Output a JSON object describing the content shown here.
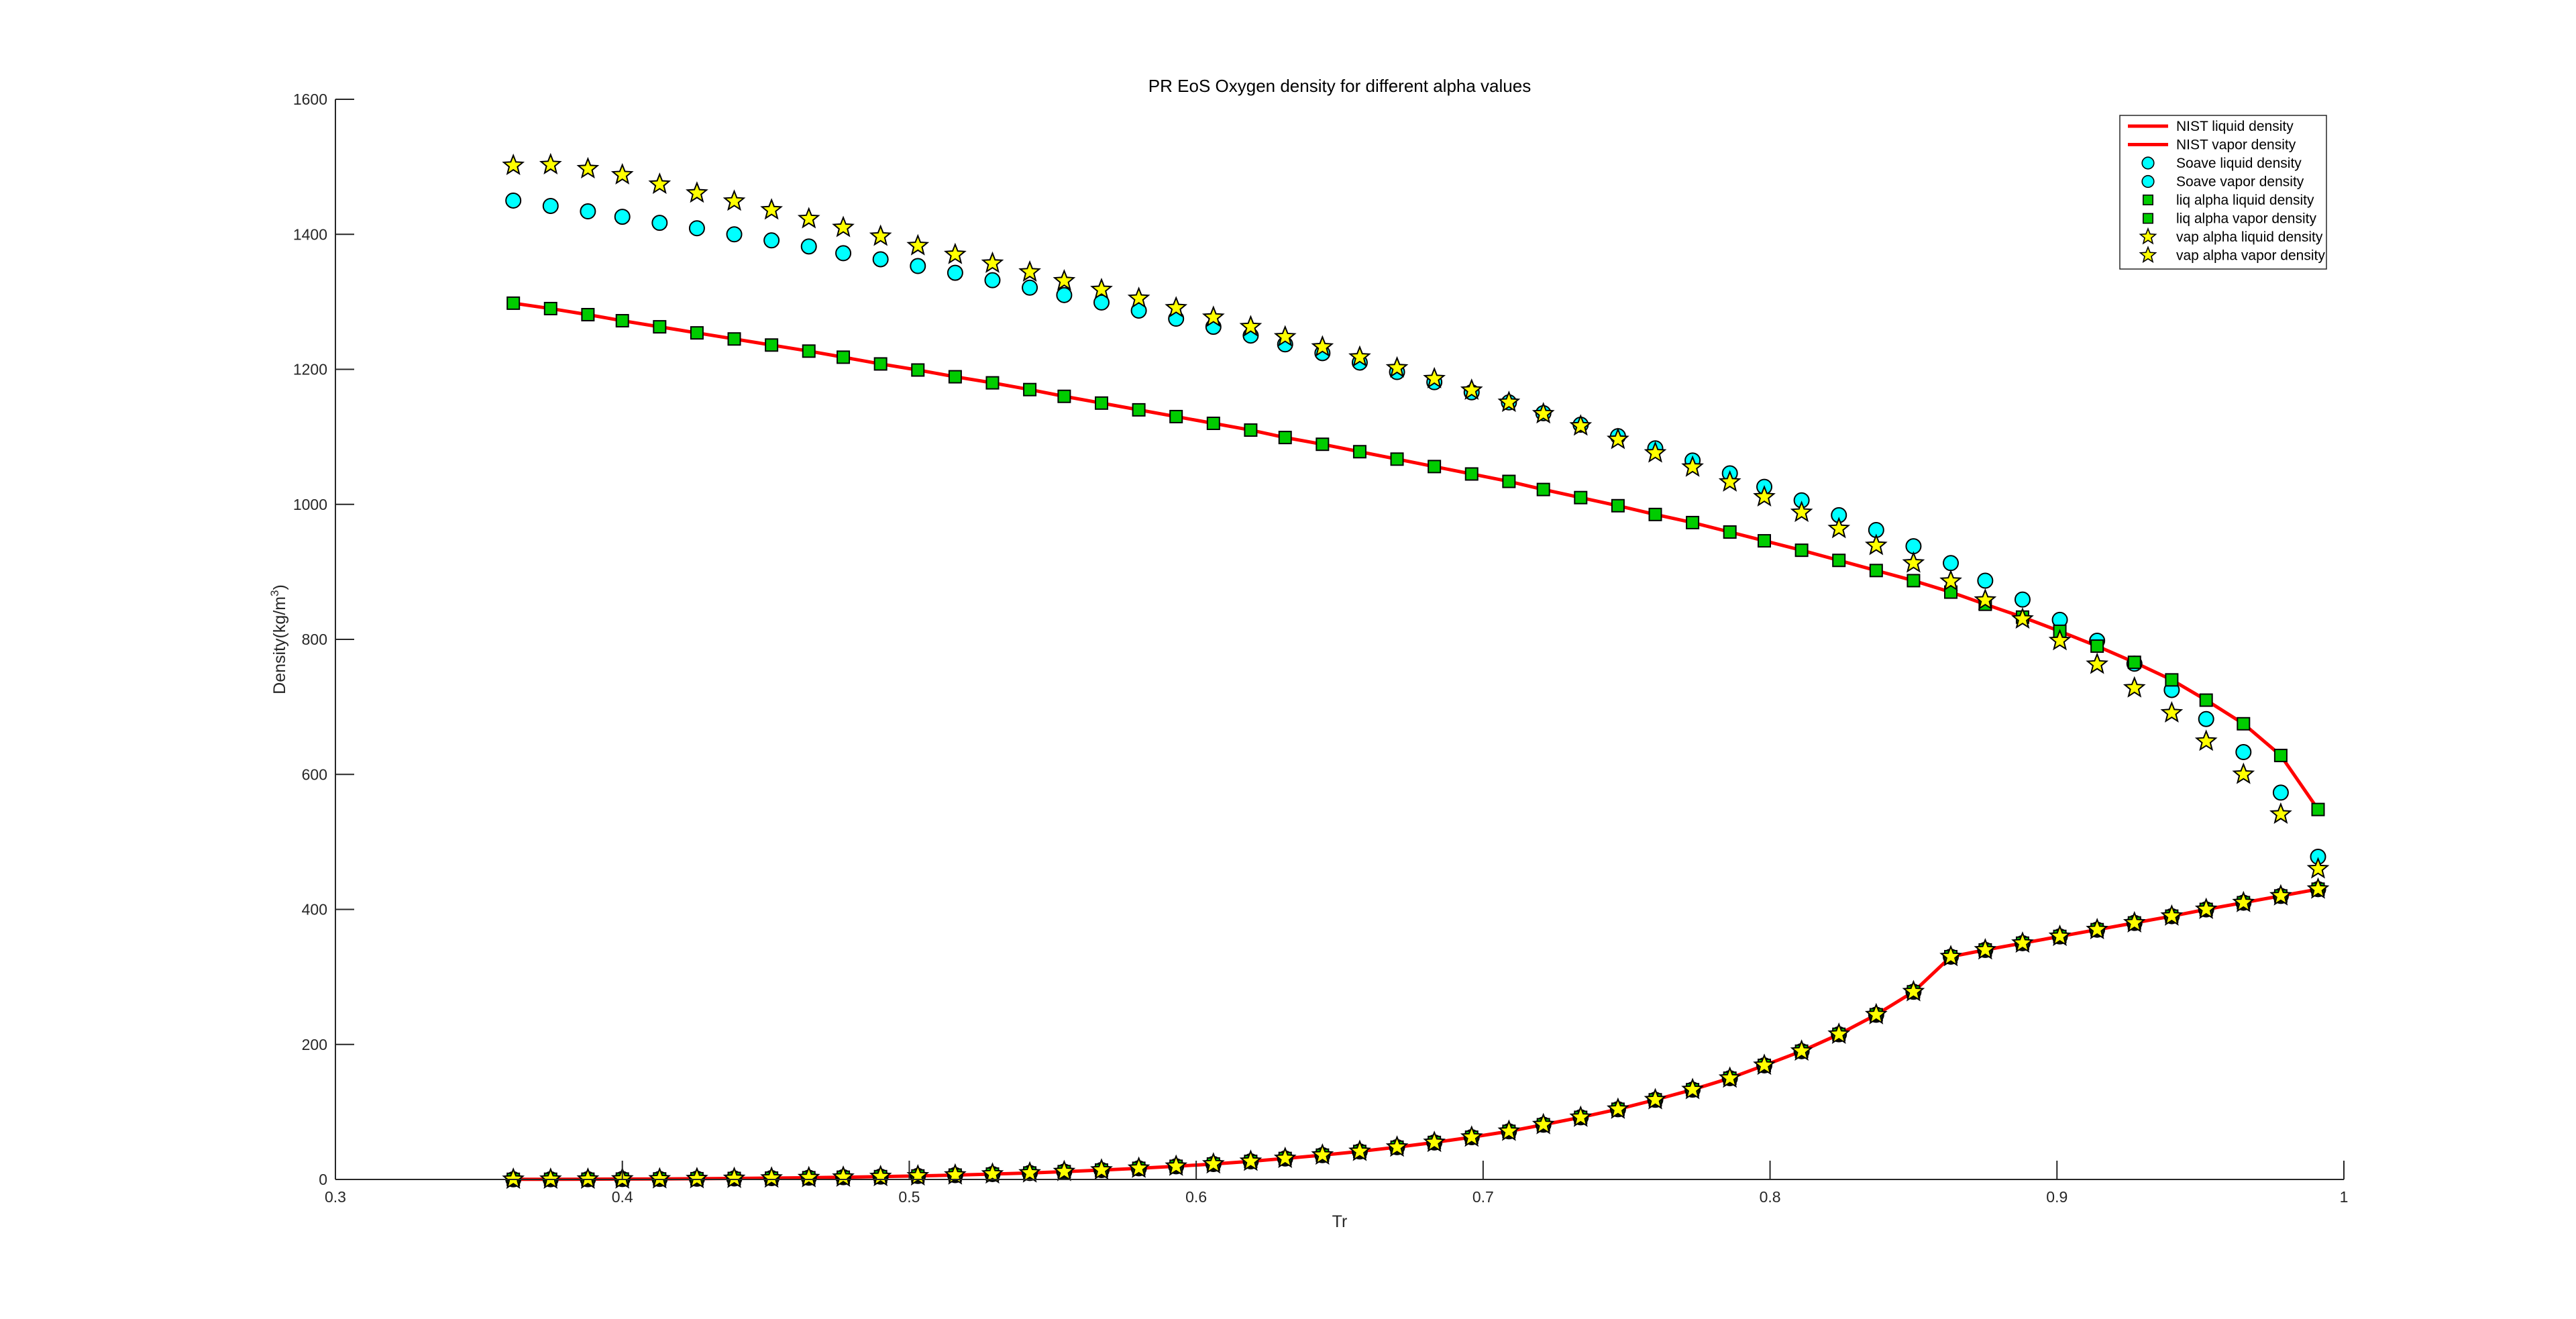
{
  "chart_data": {
    "type": "scatter",
    "title": "PR EoS Oxygen density for different alpha values",
    "xlabel": "Tr",
    "ylabel": "Density(kg/m",
    "ylabel_sup": "3",
    "ylabel_end": ")",
    "xlim": [
      0.3,
      1.0
    ],
    "ylim": [
      0,
      1600
    ],
    "xticks": [
      "0.3",
      "0.4",
      "0.5",
      "0.6",
      "0.7",
      "0.8",
      "0.9",
      "1"
    ],
    "xtick_values": [
      0.3,
      0.4,
      0.5,
      0.6,
      0.7,
      0.8,
      0.9,
      1.0
    ],
    "yticks": [
      "0",
      "200",
      "400",
      "600",
      "800",
      "1000",
      "1200",
      "1400",
      "1600"
    ],
    "ytick_values": [
      0,
      200,
      400,
      600,
      800,
      1000,
      1200,
      1400,
      1600
    ],
    "grid": false,
    "legend_position": "top-right",
    "x": [
      0.362,
      0.375,
      0.388,
      0.4,
      0.413,
      0.426,
      0.439,
      0.452,
      0.465,
      0.477,
      0.49,
      0.503,
      0.516,
      0.529,
      0.542,
      0.554,
      0.567,
      0.58,
      0.593,
      0.606,
      0.619,
      0.631,
      0.644,
      0.657,
      0.67,
      0.683,
      0.696,
      0.709,
      0.721,
      0.734,
      0.747,
      0.76,
      0.773,
      0.786,
      0.798,
      0.811,
      0.824,
      0.837,
      0.85,
      0.863,
      0.875,
      0.888,
      0.901,
      0.914,
      0.927,
      0.94,
      0.952,
      0.965,
      0.978,
      0.991
    ],
    "series": [
      {
        "name": "NIST liquid density",
        "style": "line",
        "color": "#ff0000",
        "values": [
          1298,
          1290,
          1281,
          1272,
          1263,
          1254,
          1245,
          1236,
          1227,
          1218,
          1208,
          1199,
          1189,
          1180,
          1170,
          1160,
          1150,
          1140,
          1130,
          1120,
          1110,
          1099,
          1089,
          1078,
          1067,
          1056,
          1045,
          1034,
          1022,
          1010,
          998,
          985,
          973,
          959,
          946,
          932,
          917,
          902,
          887,
          870,
          852,
          833,
          812,
          790,
          766,
          740,
          710,
          675,
          628,
          548
        ]
      },
      {
        "name": "NIST vapor density",
        "style": "line",
        "color": "#ff0000",
        "values": [
          0.2,
          0.3,
          0.4,
          0.6,
          0.8,
          1.1,
          1.5,
          2.0,
          2.6,
          3.3,
          4.2,
          5.2,
          6.5,
          8.0,
          9.6,
          11.6,
          13.9,
          16.5,
          19.5,
          22.9,
          26.8,
          31.1,
          36.0,
          41.5,
          47.8,
          54.8,
          62.6,
          71.3,
          81.1,
          92.0,
          104,
          118,
          133,
          150,
          169,
          190,
          215,
          244,
          278,
          330,
          340,
          350,
          360,
          370,
          380,
          390,
          400,
          410,
          420,
          430
        ]
      },
      {
        "name": "Soave liquid density",
        "marker": "circle",
        "color": "#00ffff",
        "values": [
          1450,
          1442,
          1434,
          1426,
          1417,
          1409,
          1400,
          1391,
          1382,
          1372,
          1363,
          1353,
          1343,
          1332,
          1321,
          1310,
          1299,
          1287,
          1275,
          1263,
          1250,
          1237,
          1224,
          1210,
          1196,
          1181,
          1166,
          1151,
          1135,
          1118,
          1101,
          1083,
          1065,
          1046,
          1026,
          1006,
          984,
          962,
          938,
          913,
          887,
          859,
          829,
          798,
          764,
          725,
          682,
          633,
          573,
          478
        ]
      },
      {
        "name": "Soave vapor density",
        "marker": "circle",
        "color": "#00ffff",
        "values": [
          0.2,
          0.3,
          0.4,
          0.6,
          0.8,
          1.1,
          1.5,
          2.0,
          2.6,
          3.3,
          4.2,
          5.2,
          6.5,
          8.0,
          9.6,
          11.6,
          13.9,
          16.5,
          19.5,
          22.9,
          26.8,
          31.1,
          36.0,
          41.5,
          47.8,
          54.8,
          62.6,
          71.3,
          81.1,
          92.0,
          104,
          118,
          133,
          150,
          169,
          190,
          215,
          244,
          278,
          330,
          340,
          350,
          360,
          370,
          380,
          390,
          400,
          410,
          420,
          430
        ]
      },
      {
        "name": "liq alpha liquid density",
        "marker": "square",
        "color": "#00cc00",
        "values": [
          1298,
          1290,
          1281,
          1272,
          1263,
          1254,
          1245,
          1236,
          1227,
          1218,
          1208,
          1199,
          1189,
          1180,
          1170,
          1160,
          1150,
          1140,
          1130,
          1120,
          1110,
          1099,
          1089,
          1078,
          1067,
          1056,
          1045,
          1034,
          1022,
          1010,
          998,
          985,
          973,
          959,
          946,
          932,
          917,
          902,
          887,
          870,
          852,
          833,
          812,
          790,
          766,
          740,
          710,
          675,
          628,
          548
        ]
      },
      {
        "name": "liq alpha vapor density",
        "marker": "square",
        "color": "#00cc00",
        "values": [
          0.2,
          0.3,
          0.4,
          0.6,
          0.8,
          1.1,
          1.5,
          2.0,
          2.6,
          3.3,
          4.2,
          5.2,
          6.5,
          8.0,
          9.6,
          11.6,
          13.9,
          16.5,
          19.5,
          22.9,
          26.8,
          31.1,
          36.0,
          41.5,
          47.8,
          54.8,
          62.6,
          71.3,
          81.1,
          92.0,
          104,
          118,
          133,
          150,
          169,
          190,
          215,
          244,
          278,
          330,
          340,
          350,
          360,
          370,
          380,
          390,
          400,
          410,
          420,
          430
        ]
      },
      {
        "name": "vap alpha liquid density",
        "marker": "star",
        "color": "#ffff00",
        "values": [
          1502,
          1503,
          1497,
          1488,
          1474,
          1461,
          1449,
          1436,
          1423,
          1410,
          1397,
          1383,
          1370,
          1357,
          1344,
          1331,
          1318,
          1305,
          1291,
          1277,
          1263,
          1248,
          1233,
          1218,
          1202,
          1186,
          1169,
          1151,
          1134,
          1116,
          1096,
          1076,
          1055,
          1033,
          1011,
          988,
          964,
          939,
          913,
          886,
          858,
          830,
          798,
          763,
          728,
          691,
          649,
          600,
          541,
          460
        ]
      },
      {
        "name": "vap alpha vapor density",
        "marker": "star",
        "color": "#ffff00",
        "values": [
          0.2,
          0.3,
          0.4,
          0.6,
          0.8,
          1.1,
          1.5,
          2.0,
          2.6,
          3.3,
          4.2,
          5.2,
          6.5,
          8.0,
          9.6,
          11.6,
          13.9,
          16.5,
          19.5,
          22.9,
          26.8,
          31.1,
          36.0,
          41.5,
          47.8,
          54.8,
          62.6,
          71.3,
          81.1,
          92.0,
          104,
          118,
          133,
          150,
          169,
          190,
          215,
          244,
          278,
          330,
          340,
          350,
          360,
          370,
          380,
          390,
          400,
          410,
          420,
          430
        ]
      }
    ]
  }
}
